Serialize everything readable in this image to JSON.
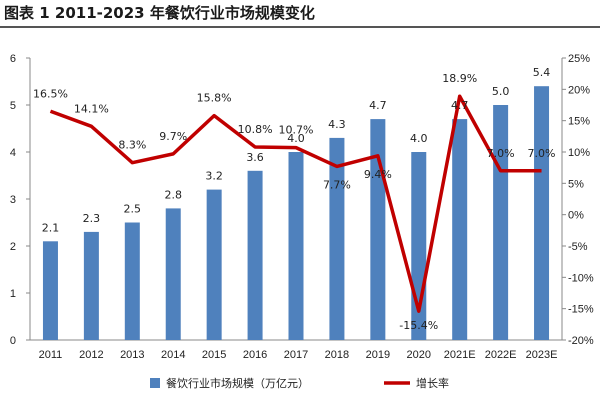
{
  "title": "图表 1 2011-2023 年餐饮行业市场规模变化",
  "chart_data": {
    "type": "bar",
    "title": "图表 1 2011-2023 年餐饮行业市场规模变化",
    "categories": [
      "2011",
      "2012",
      "2013",
      "2014",
      "2015",
      "2016",
      "2017",
      "2018",
      "2019",
      "2020",
      "2021E",
      "2022E",
      "2023E"
    ],
    "series": [
      {
        "name": "餐饮行业市场规模（万亿元）",
        "type": "bar",
        "axis": "left",
        "color": "#4f81bd",
        "values": [
          2.1,
          2.3,
          2.5,
          2.8,
          3.2,
          3.6,
          4.0,
          4.3,
          4.7,
          4.0,
          4.7,
          5.0,
          5.4
        ],
        "labels": [
          "2.1",
          "2.3",
          "2.5",
          "2.8",
          "3.2",
          "3.6",
          "4.0",
          "4.3",
          "4.7",
          "4.0",
          "4.7",
          "5.0",
          "5.4"
        ]
      },
      {
        "name": "增长率",
        "type": "line",
        "axis": "right",
        "color": "#c00000",
        "values": [
          16.5,
          14.1,
          8.3,
          9.7,
          15.8,
          10.8,
          10.7,
          7.7,
          9.4,
          -15.4,
          18.9,
          7.0,
          7.0
        ],
        "labels": [
          "16.5%",
          "14.1%",
          "8.3%",
          "9.7%",
          "15.8%",
          "10.8%",
          "10.7%",
          "7.7%",
          "9.4%",
          "-15.4%",
          "18.9%",
          "7.0%",
          "7.0%"
        ]
      }
    ],
    "left_axis": {
      "ylim": [
        0,
        6
      ],
      "ticks": [
        "0",
        "1",
        "2",
        "3",
        "4",
        "5",
        "6"
      ]
    },
    "right_axis": {
      "ylim": [
        -20,
        25
      ],
      "ticks": [
        "-20%",
        "-15%",
        "-10%",
        "-5%",
        "0%",
        "5%",
        "10%",
        "15%",
        "20%",
        "25%"
      ]
    },
    "legend": {
      "position": "bottom"
    },
    "grid": false
  }
}
